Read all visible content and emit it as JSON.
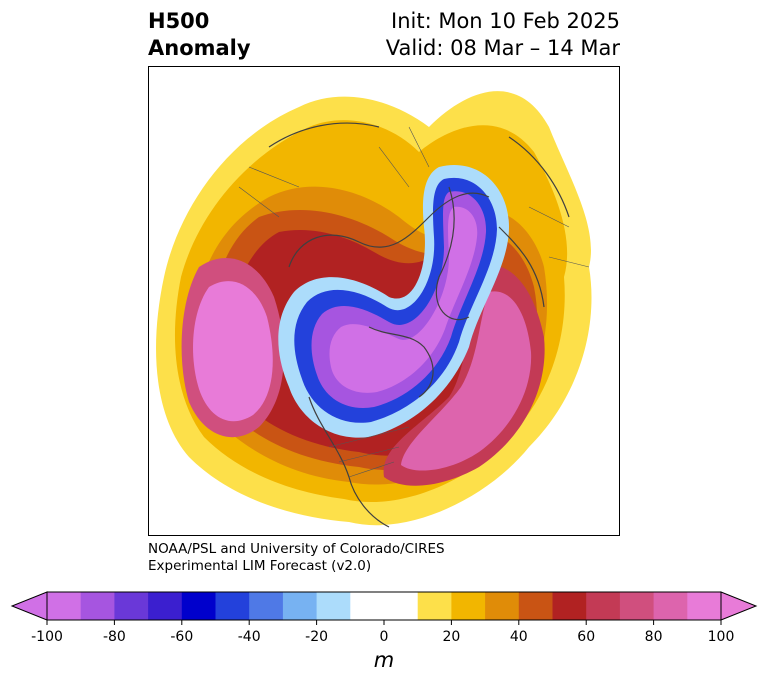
{
  "title": {
    "left_line1": "H500",
    "left_line2": "Anomaly",
    "right_line1": "Init: Mon 10 Feb 2025",
    "right_line2": "Valid: 08 Mar – 14 Mar"
  },
  "credit": {
    "line1": "NOAA/PSL and University of Colorado/CIRES",
    "line2": "Experimental LIM Forecast (v2.0)"
  },
  "colorbar": {
    "unit_label": "m",
    "ticks": [
      "-100",
      "-80",
      "-60",
      "-40",
      "-20",
      "0",
      "20",
      "40",
      "60",
      "80",
      "100"
    ],
    "colors": [
      "#d070e6",
      "#a655e0",
      "#6a38d8",
      "#3b1fcf",
      "#0000cc",
      "#2341db",
      "#4f79e6",
      "#77b2f2",
      "#acdcfb",
      "#ffffff",
      "#ffffff",
      "#fde04a",
      "#f2b600",
      "#e08c08",
      "#c95414",
      "#b12222",
      "#c33a55",
      "#d04f7e",
      "#dd64ad",
      "#e87bd8"
    ],
    "extend_low_color": "#d070e6",
    "extend_high_color": "#e87bd8"
  },
  "map": {
    "projection": "north-polar-stereographic",
    "field": "500 hPa geopotential height anomaly",
    "features": [
      "coastlines",
      "country borders",
      "US state borders",
      "Canada province borders"
    ]
  }
}
